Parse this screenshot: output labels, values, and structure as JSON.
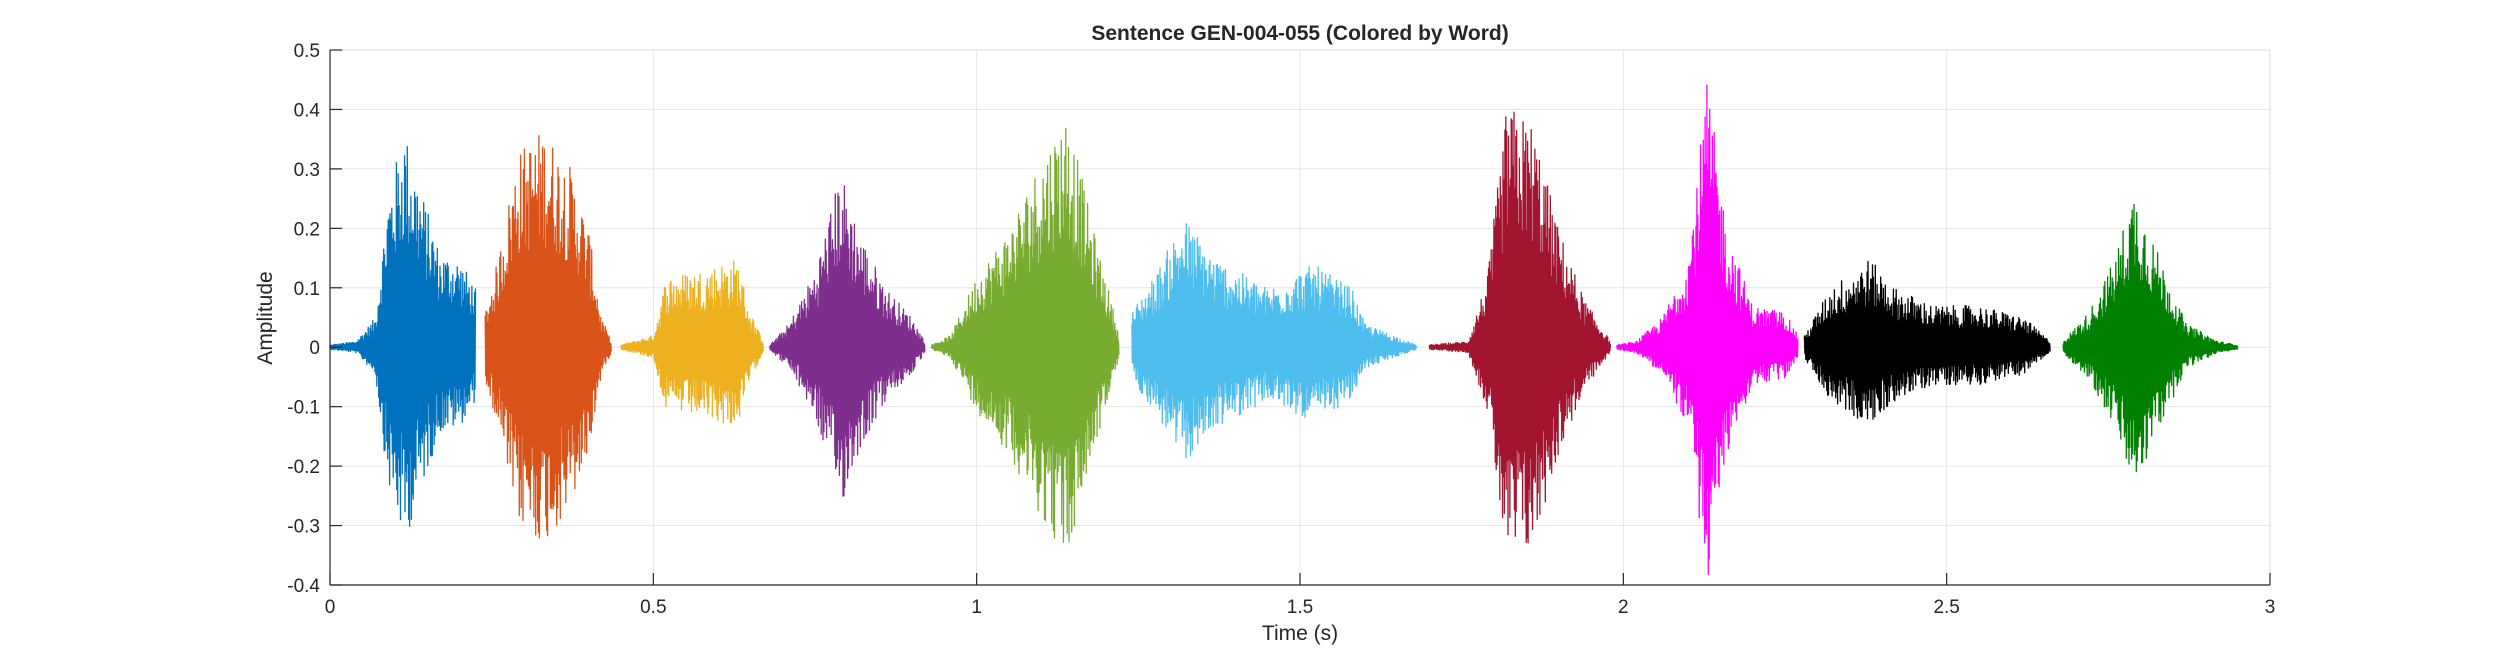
{
  "chart_data": {
    "type": "line",
    "title": "Sentence GEN-004-055 (Colored by Word)",
    "xlabel": "Time (s)",
    "ylabel": "Amplitude",
    "xlim": [
      0,
      3
    ],
    "ylim": [
      -0.4,
      0.5
    ],
    "xticks": [
      0,
      0.5,
      1,
      1.5,
      2,
      2.5,
      3
    ],
    "xtick_labels": [
      "0",
      "0.5",
      "1",
      "1.5",
      "2",
      "2.5",
      "3"
    ],
    "yticks": [
      -0.4,
      -0.3,
      -0.2,
      -0.1,
      0,
      0.1,
      0.2,
      0.3,
      0.4,
      0.5
    ],
    "ytick_labels": [
      "-0.4",
      "-0.3",
      "-0.2",
      "-0.1",
      "0",
      "0.1",
      "0.2",
      "0.3",
      "0.4",
      "0.5"
    ],
    "grid": true,
    "series": [
      {
        "color": "#0072BD",
        "x_start": 0.0,
        "x_end": 0.225,
        "envelope": [
          [
            0.0,
            0.004
          ],
          [
            0.04,
            0.01
          ],
          [
            0.07,
            0.05
          ],
          [
            0.09,
            0.26
          ],
          [
            0.115,
            0.37
          ],
          [
            0.14,
            0.27
          ],
          [
            0.17,
            0.16
          ],
          [
            0.2,
            0.15
          ],
          [
            0.225,
            0.1
          ]
        ]
      },
      {
        "color": "#D95319",
        "x_start": 0.24,
        "x_end": 0.435,
        "envelope": [
          [
            0.24,
            0.06
          ],
          [
            0.26,
            0.15
          ],
          [
            0.29,
            0.33
          ],
          [
            0.33,
            0.37
          ],
          [
            0.37,
            0.31
          ],
          [
            0.4,
            0.2
          ],
          [
            0.42,
            0.05
          ],
          [
            0.435,
            0.01
          ]
        ]
      },
      {
        "color": "#EDB120",
        "x_start": 0.45,
        "x_end": 0.67,
        "envelope": [
          [
            0.45,
            0.004
          ],
          [
            0.5,
            0.02
          ],
          [
            0.52,
            0.12
          ],
          [
            0.57,
            0.13
          ],
          [
            0.63,
            0.15
          ],
          [
            0.65,
            0.06
          ],
          [
            0.67,
            0.01
          ]
        ]
      },
      {
        "color": "#7E2F8E",
        "x_start": 0.68,
        "x_end": 0.92,
        "envelope": [
          [
            0.68,
            0.004
          ],
          [
            0.71,
            0.04
          ],
          [
            0.75,
            0.13
          ],
          [
            0.79,
            0.3
          ],
          [
            0.82,
            0.19
          ],
          [
            0.86,
            0.1
          ],
          [
            0.9,
            0.05
          ],
          [
            0.92,
            0.01
          ]
        ]
      },
      {
        "color": "#77AC30",
        "x_start": 0.93,
        "x_end": 1.22,
        "envelope": [
          [
            0.93,
            0.004
          ],
          [
            0.96,
            0.02
          ],
          [
            1.0,
            0.12
          ],
          [
            1.05,
            0.2
          ],
          [
            1.1,
            0.32
          ],
          [
            1.14,
            0.4
          ],
          [
            1.18,
            0.2
          ],
          [
            1.21,
            0.07
          ],
          [
            1.22,
            0.02
          ]
        ]
      },
      {
        "color": "#4DBEEE",
        "x_start": 1.24,
        "x_end": 1.68,
        "envelope": [
          [
            1.24,
            0.06
          ],
          [
            1.28,
            0.13
          ],
          [
            1.32,
            0.22
          ],
          [
            1.37,
            0.15
          ],
          [
            1.45,
            0.1
          ],
          [
            1.52,
            0.14
          ],
          [
            1.58,
            0.1
          ],
          [
            1.6,
            0.04
          ],
          [
            1.68,
            0.004
          ]
        ]
      },
      {
        "color": "#A2142F",
        "x_start": 1.7,
        "x_end": 1.98,
        "envelope": [
          [
            1.7,
            0.004
          ],
          [
            1.76,
            0.01
          ],
          [
            1.79,
            0.12
          ],
          [
            1.82,
            0.41
          ],
          [
            1.86,
            0.38
          ],
          [
            1.9,
            0.2
          ],
          [
            1.94,
            0.08
          ],
          [
            1.98,
            0.01
          ]
        ]
      },
      {
        "color": "#FF00FF",
        "x_start": 1.99,
        "x_end": 2.27,
        "envelope": [
          [
            1.99,
            0.004
          ],
          [
            2.02,
            0.01
          ],
          [
            2.06,
            0.05
          ],
          [
            2.1,
            0.15
          ],
          [
            2.13,
            0.45
          ],
          [
            2.16,
            0.2
          ],
          [
            2.2,
            0.07
          ],
          [
            2.25,
            0.06
          ],
          [
            2.27,
            0.02
          ]
        ]
      },
      {
        "color": "#000000",
        "x_start": 2.28,
        "x_end": 2.66,
        "envelope": [
          [
            2.28,
            0.02
          ],
          [
            2.32,
            0.1
          ],
          [
            2.38,
            0.15
          ],
          [
            2.42,
            0.1
          ],
          [
            2.48,
            0.07
          ],
          [
            2.55,
            0.07
          ],
          [
            2.62,
            0.05
          ],
          [
            2.66,
            0.01
          ]
        ]
      },
      {
        "color": "#008000",
        "x_start": 2.68,
        "x_end": 2.95,
        "envelope": [
          [
            2.68,
            0.01
          ],
          [
            2.72,
            0.06
          ],
          [
            2.76,
            0.15
          ],
          [
            2.79,
            0.27
          ],
          [
            2.83,
            0.15
          ],
          [
            2.87,
            0.04
          ],
          [
            2.92,
            0.01
          ],
          [
            2.95,
            0.004
          ]
        ]
      }
    ]
  }
}
